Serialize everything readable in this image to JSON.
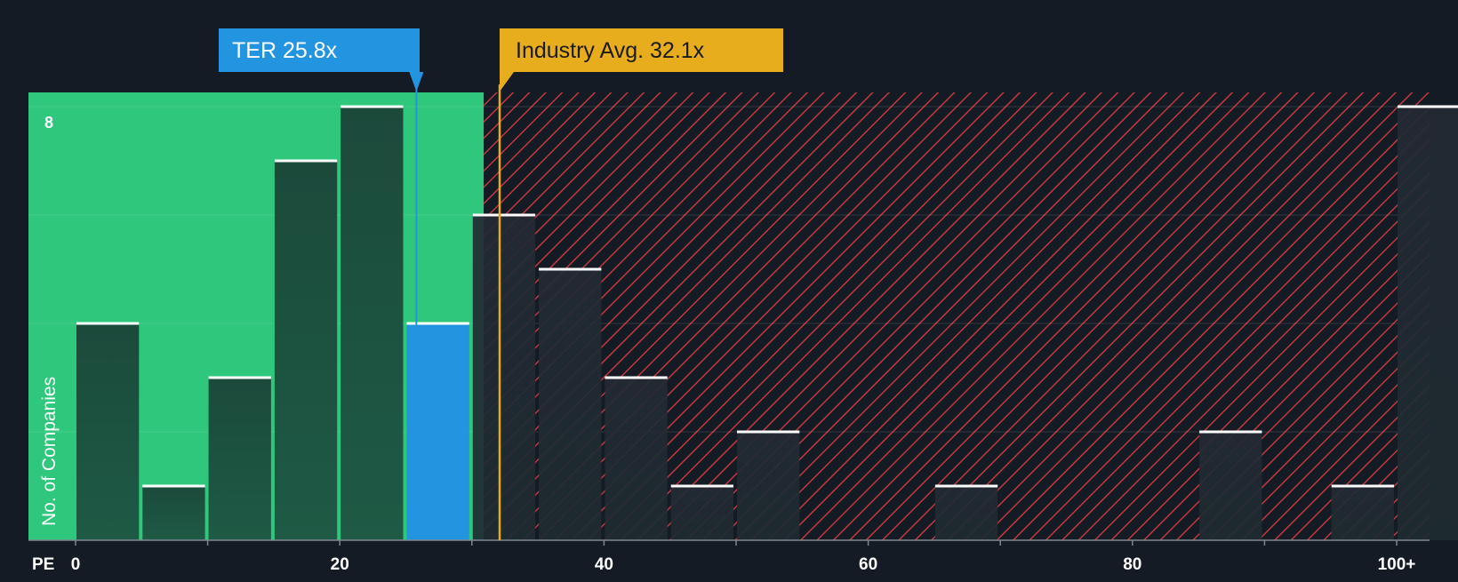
{
  "chart_data": {
    "type": "bar",
    "x_label": "PE",
    "y_label": "No. of Companies",
    "x_ticks": [
      "0",
      "20",
      "40",
      "60",
      "80",
      "100+"
    ],
    "y_tick_label": "8",
    "bin_width": 5,
    "bins": [
      {
        "start": 0,
        "count": 4
      },
      {
        "start": 5,
        "count": 1
      },
      {
        "start": 10,
        "count": 3
      },
      {
        "start": 15,
        "count": 7
      },
      {
        "start": 20,
        "count": 8
      },
      {
        "start": 25,
        "count": 4,
        "highlight": true
      },
      {
        "start": 30,
        "count": 6
      },
      {
        "start": 35,
        "count": 5
      },
      {
        "start": 40,
        "count": 3
      },
      {
        "start": 45,
        "count": 1
      },
      {
        "start": 50,
        "count": 2
      },
      {
        "start": 65,
        "count": 1
      },
      {
        "start": 85,
        "count": 2
      },
      {
        "start": 95,
        "count": 1
      },
      {
        "start": 100,
        "count": 8
      }
    ],
    "ylim": [
      0,
      8
    ],
    "company": {
      "label": "TER 25.8x",
      "value": 25.8
    },
    "industry_avg": {
      "label": "Industry Avg. 32.1x",
      "value": 32.1
    },
    "fair_zone_end": 30.9,
    "colors": {
      "background": "#151b24",
      "fair_zone": "#2ec77b",
      "bar_green": "#1e5a45",
      "bar_dark": "#1e2b31",
      "highlight": "#2394e0",
      "hatch": "#c0393e",
      "industry": "#e8ad1c",
      "bar_top": "#ffffff"
    }
  }
}
